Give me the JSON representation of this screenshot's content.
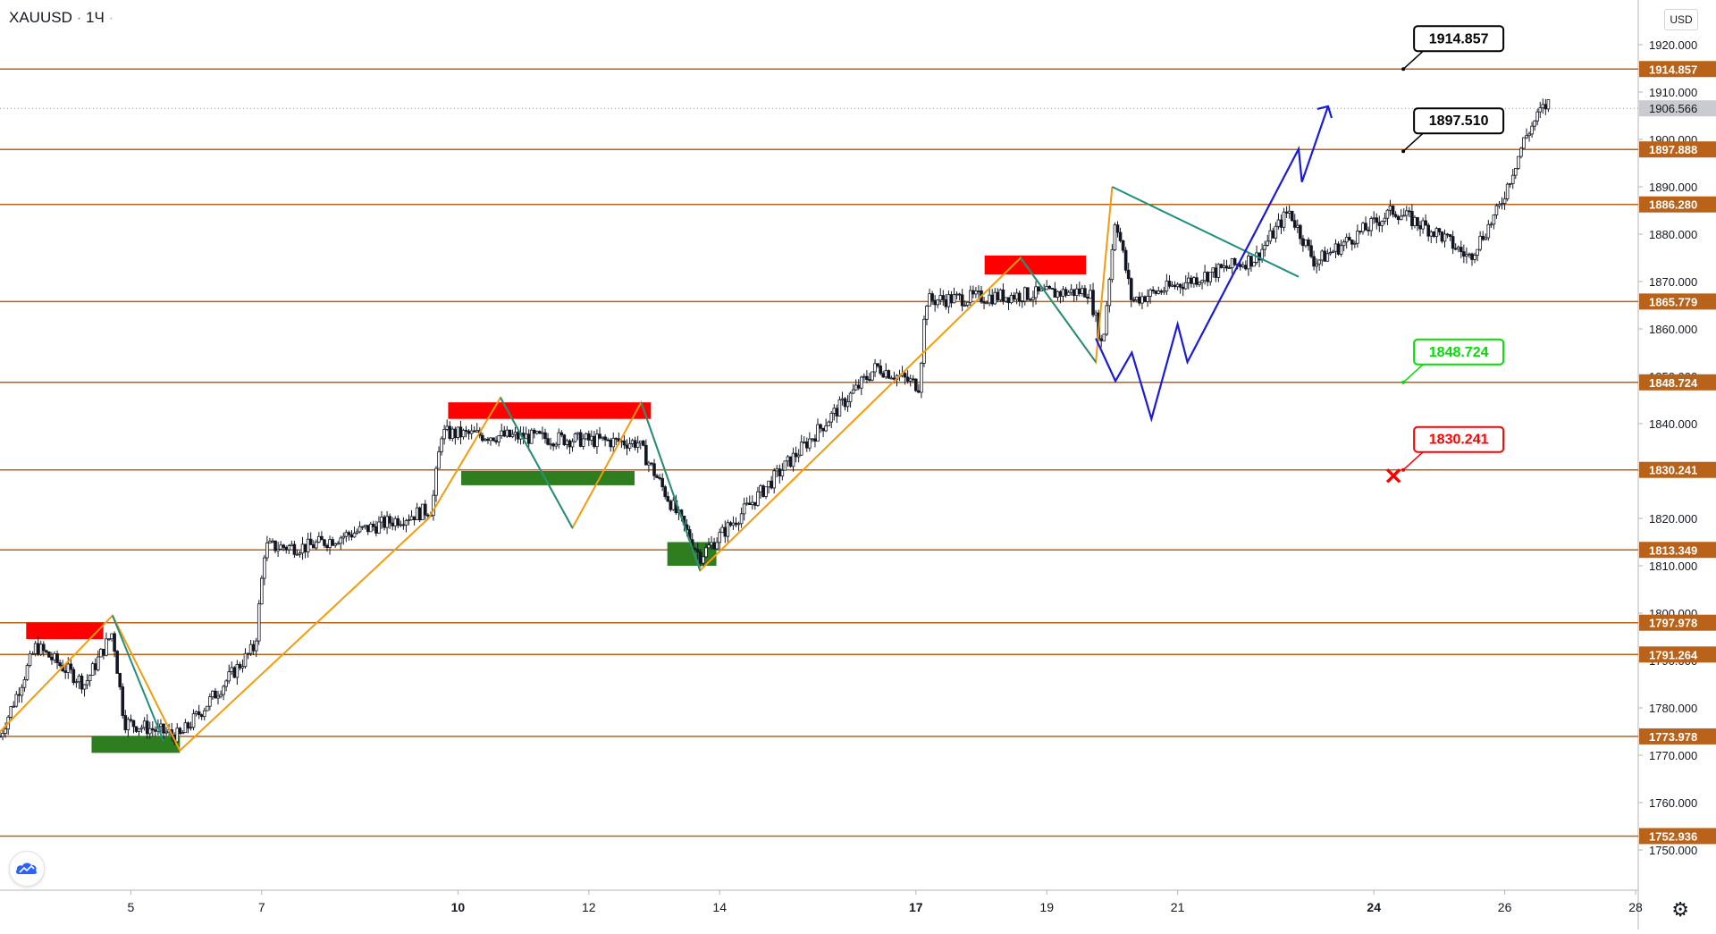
{
  "header": {
    "symbol": "XAUUSD",
    "separator": "·",
    "interval": "1Ч",
    "dot": "·"
  },
  "currency": "USD",
  "icons": {
    "logo": "tradingview-cloud-icon",
    "settings": "gear-icon",
    "target": "red-cross-icon"
  },
  "colors": {
    "level_line": "#b8621a",
    "level_label_bg": "#b8621a",
    "up_candle": "#ffffff",
    "down_candle": "#131722",
    "zigzag_orange": "#f59b0c",
    "zigzag_teal": "#1f8f80",
    "projection_blue": "#1a1adb",
    "zone_red": "#ff0000",
    "zone_green": "#2e7d1e",
    "last_price_bg": "#c9cbd0",
    "callout_green": "#00e000",
    "callout_red": "#ff0000"
  },
  "chart_data": {
    "type": "candlestick",
    "symbol": "XAUUSD",
    "interval": "1Ч",
    "ylim": [
      1745,
      1925
    ],
    "y_ticks": [
      "1750.000",
      "1760.000",
      "1770.000",
      "1780.000",
      "1790.000",
      "1800.000",
      "1810.000",
      "1820.000",
      "1830.000",
      "1840.000",
      "1850.000",
      "1860.000",
      "1870.000",
      "1880.000",
      "1890.000",
      "1900.000",
      "1910.000",
      "1920.000"
    ],
    "y_tick_values": [
      1750,
      1760,
      1770,
      1780,
      1790,
      1800,
      1810,
      1820,
      1830,
      1840,
      1850,
      1860,
      1870,
      1880,
      1890,
      1900,
      1910,
      1920
    ],
    "xlim": [
      3,
      28
    ],
    "x_ticks": [
      {
        "day": 5,
        "label": "5",
        "bold": false
      },
      {
        "day": 7,
        "label": "7",
        "bold": false
      },
      {
        "day": 10,
        "label": "10",
        "bold": true
      },
      {
        "day": 12,
        "label": "12",
        "bold": false
      },
      {
        "day": 14,
        "label": "14",
        "bold": false
      },
      {
        "day": 17,
        "label": "17",
        "bold": true
      },
      {
        "day": 19,
        "label": "19",
        "bold": false
      },
      {
        "day": 21,
        "label": "21",
        "bold": false
      },
      {
        "day": 24,
        "label": "24",
        "bold": true
      },
      {
        "day": 26,
        "label": "26",
        "bold": false
      },
      {
        "day": 28,
        "label": "28",
        "bold": false
      }
    ],
    "levels": [
      {
        "value": 1914.857,
        "label": "1914.857"
      },
      {
        "value": 1897.888,
        "label": "1897.888"
      },
      {
        "value": 1886.28,
        "label": "1886.280"
      },
      {
        "value": 1865.779,
        "label": "1865.779"
      },
      {
        "value": 1848.724,
        "label": "1848.724"
      },
      {
        "value": 1830.241,
        "label": "1830.241"
      },
      {
        "value": 1813.349,
        "label": "1813.349"
      },
      {
        "value": 1797.978,
        "label": "1797.978"
      },
      {
        "value": 1791.264,
        "label": "1791.264"
      },
      {
        "value": 1773.978,
        "label": "1773.978"
      },
      {
        "value": 1752.936,
        "label": "1752.936"
      }
    ],
    "last_price": {
      "value": 1906.566,
      "label": "1906.566"
    },
    "callouts": [
      {
        "label": "1914.857",
        "value": 1914.857,
        "day": 24.45,
        "style": "black"
      },
      {
        "label": "1897.510",
        "value": 1897.51,
        "day": 24.45,
        "style": "black"
      },
      {
        "label": "1848.724",
        "value": 1848.724,
        "day": 24.45,
        "style": "green"
      },
      {
        "label": "1830.241",
        "value": 1830.241,
        "day": 24.45,
        "style": "red"
      }
    ],
    "target_marker": {
      "day": 24.3,
      "value": 1829
    },
    "zones": [
      {
        "color": "red",
        "d1": 3.4,
        "d2": 4.58,
        "y1": 1798,
        "y2": 1794.5
      },
      {
        "color": "green",
        "d1": 4.4,
        "d2": 5.75,
        "y1": 1774,
        "y2": 1770.5
      },
      {
        "color": "red",
        "d1": 9.85,
        "d2": 12.95,
        "y1": 1844.5,
        "y2": 1841
      },
      {
        "color": "green",
        "d1": 10.05,
        "d2": 12.7,
        "y1": 1830,
        "y2": 1827
      },
      {
        "color": "green",
        "d1": 13.2,
        "d2": 13.95,
        "y1": 1815,
        "y2": 1810
      },
      {
        "color": "red",
        "d1": 18.05,
        "d2": 19.6,
        "y1": 1875.5,
        "y2": 1871.5
      }
    ],
    "zigzag_orange": [
      [
        3,
        1775
      ],
      [
        4.72,
        1799.5
      ],
      [
        5.75,
        1771
      ],
      [
        9.55,
        1820
      ],
      [
        10.65,
        1845.5
      ],
      [
        11.75,
        1818
      ],
      [
        12.8,
        1844.5
      ],
      [
        13.7,
        1809
      ],
      [
        18.6,
        1875
      ],
      [
        19.75,
        1853
      ],
      [
        20,
        1890
      ]
    ],
    "zigzag_teal": [
      [
        4.72,
        1799.5
      ],
      [
        5.5,
        1773
      ],
      [
        10.65,
        1845.5
      ],
      [
        11.75,
        1818
      ],
      [
        12.8,
        1844.5
      ],
      [
        13.7,
        1809
      ],
      [
        18.6,
        1875
      ],
      [
        19.75,
        1853
      ],
      [
        20,
        1890
      ],
      [
        22.85,
        1871
      ]
    ],
    "projection_blue": [
      [
        19.75,
        1858
      ],
      [
        20.05,
        1849
      ],
      [
        20.3,
        1855
      ],
      [
        20.6,
        1841
      ],
      [
        21.0,
        1861
      ],
      [
        21.15,
        1853
      ],
      [
        22.85,
        1898
      ],
      [
        22.9,
        1891
      ],
      [
        23.3,
        1907
      ]
    ],
    "candle_segments": [
      {
        "d0": 3.0,
        "d1": 3.55,
        "p0": 1774,
        "p1": 1793
      },
      {
        "d0": 3.55,
        "d1": 4.3,
        "p0": 1793,
        "p1": 1785
      },
      {
        "d0": 4.3,
        "d1": 4.72,
        "p0": 1785,
        "p1": 1796
      },
      {
        "d0": 4.72,
        "d1": 4.9,
        "p0": 1796,
        "p1": 1777
      },
      {
        "d0": 4.9,
        "d1": 5.75,
        "p0": 1777,
        "p1": 1774
      },
      {
        "d0": 5.75,
        "d1": 6.9,
        "p0": 1774,
        "p1": 1793
      },
      {
        "d0": 6.9,
        "d1": 7.05,
        "p0": 1793,
        "p1": 1814
      },
      {
        "d0": 7.05,
        "d1": 7.7,
        "p0": 1814,
        "p1": 1814
      },
      {
        "d0": 7.7,
        "d1": 9.6,
        "p0": 1814,
        "p1": 1822
      },
      {
        "d0": 9.6,
        "d1": 9.75,
        "p0": 1822,
        "p1": 1838
      },
      {
        "d0": 9.75,
        "d1": 12.75,
        "p0": 1838,
        "p1": 1836
      },
      {
        "d0": 12.75,
        "d1": 13.7,
        "p0": 1836,
        "p1": 1812
      },
      {
        "d0": 13.7,
        "d1": 14.4,
        "p0": 1812,
        "p1": 1822
      },
      {
        "d0": 14.4,
        "d1": 16.4,
        "p0": 1822,
        "p1": 1852
      },
      {
        "d0": 16.4,
        "d1": 17.05,
        "p0": 1852,
        "p1": 1848
      },
      {
        "d0": 17.05,
        "d1": 17.15,
        "p0": 1848,
        "p1": 1866
      },
      {
        "d0": 17.15,
        "d1": 19.65,
        "p0": 1866,
        "p1": 1868
      },
      {
        "d0": 19.65,
        "d1": 19.85,
        "p0": 1868,
        "p1": 1856
      },
      {
        "d0": 19.85,
        "d1": 20.05,
        "p0": 1856,
        "p1": 1884
      },
      {
        "d0": 20.05,
        "d1": 20.3,
        "p0": 1884,
        "p1": 1866
      },
      {
        "d0": 20.3,
        "d1": 22.2,
        "p0": 1866,
        "p1": 1875
      },
      {
        "d0": 22.2,
        "d1": 22.7,
        "p0": 1875,
        "p1": 1885
      },
      {
        "d0": 22.7,
        "d1": 23.1,
        "p0": 1885,
        "p1": 1874
      },
      {
        "d0": 23.1,
        "d1": 24.3,
        "p0": 1874,
        "p1": 1885
      },
      {
        "d0": 24.3,
        "d1": 25.0,
        "p0": 1885,
        "p1": 1880
      },
      {
        "d0": 25.0,
        "d1": 25.45,
        "p0": 1880,
        "p1": 1875
      },
      {
        "d0": 25.45,
        "d1": 25.9,
        "p0": 1875,
        "p1": 1885
      },
      {
        "d0": 25.9,
        "d1": 26.3,
        "p0": 1885,
        "p1": 1900
      },
      {
        "d0": 26.3,
        "d1": 26.55,
        "p0": 1900,
        "p1": 1906
      },
      {
        "d0": 26.55,
        "d1": 26.7,
        "p0": 1906,
        "p1": 1908
      }
    ]
  }
}
